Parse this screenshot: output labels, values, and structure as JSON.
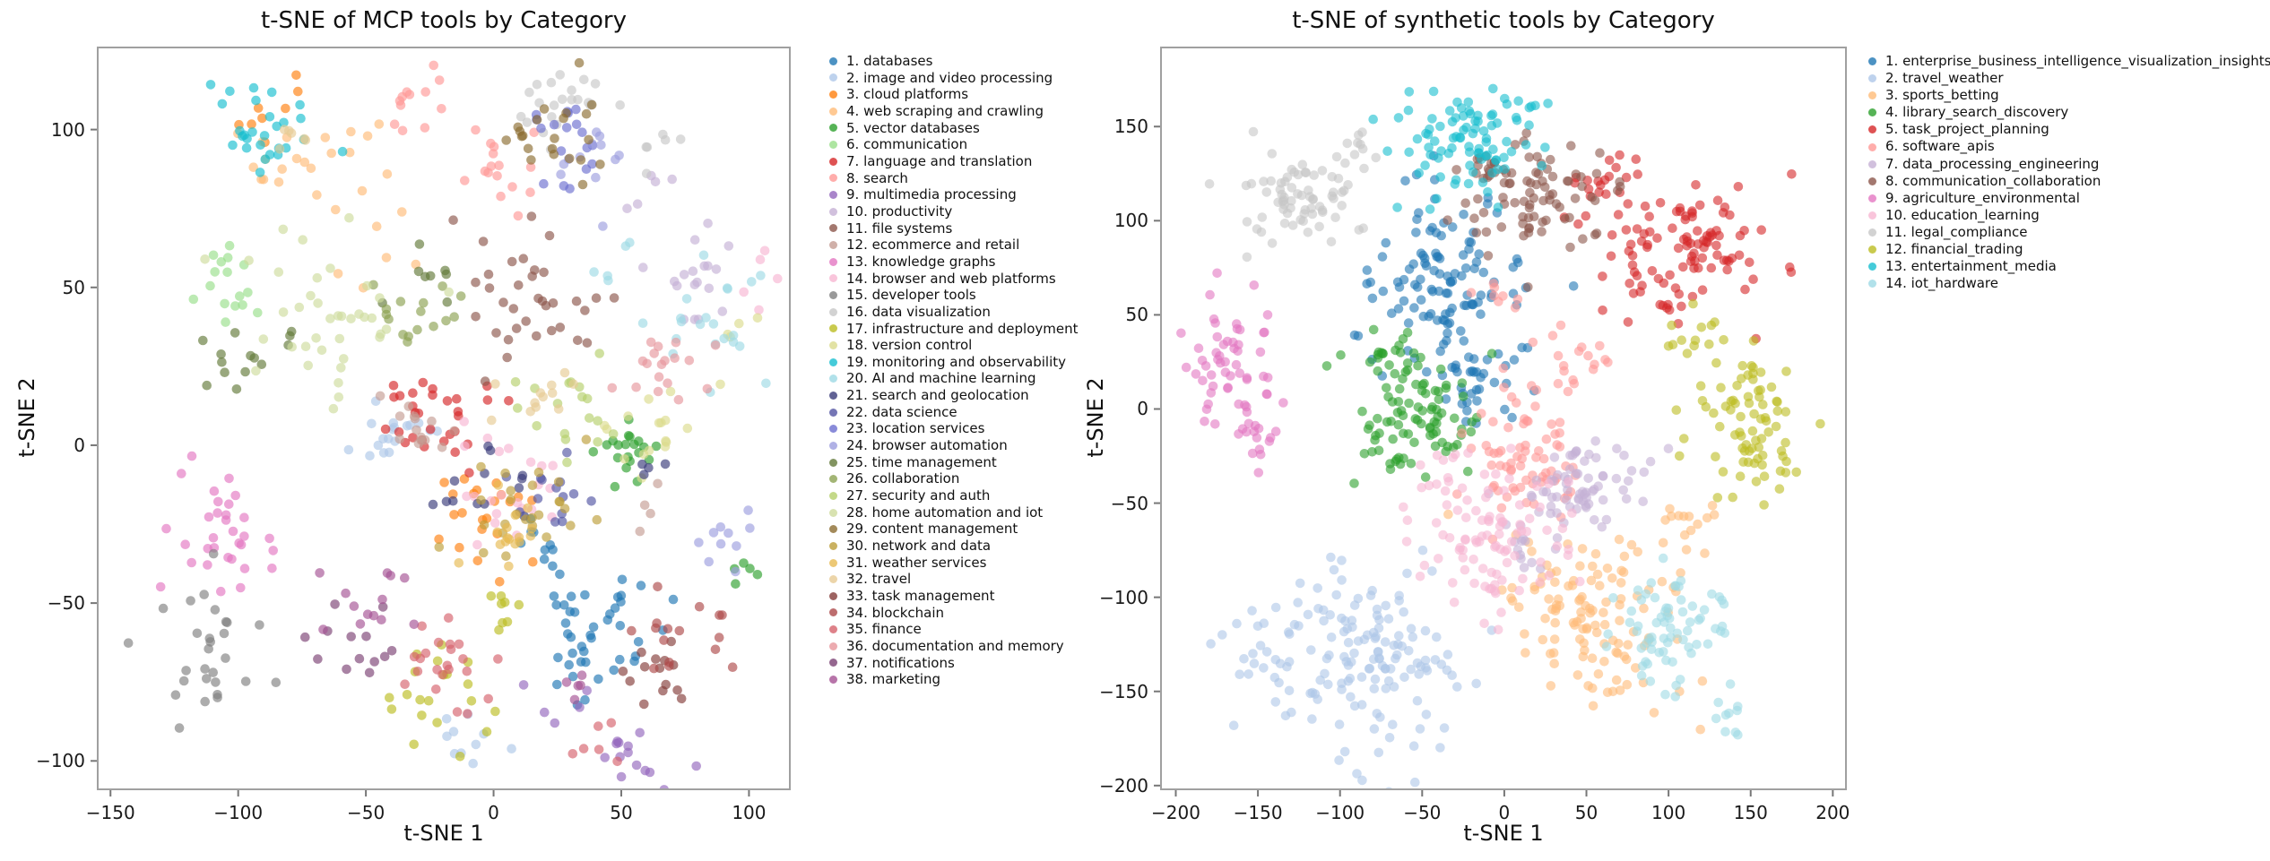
{
  "chart_data": [
    {
      "type": "scatter",
      "title": "t-SNE of MCP tools by Category",
      "xlabel": "t-SNE 1",
      "ylabel": "t-SNE 2",
      "x_ticks": [
        -150,
        -100,
        -50,
        0,
        50,
        100
      ],
      "y_ticks": [
        100,
        50,
        0,
        -50,
        -100
      ],
      "xlim": [
        -155,
        116
      ],
      "ylim": [
        -109,
        126
      ],
      "grid": false,
      "legend_position": "right-outside",
      "point_alpha": 0.65,
      "series": [
        {
          "name": "1. databases",
          "color": "#1f77b4",
          "clusters": [
            [
              40,
              -58,
              13,
              11,
              45
            ],
            [
              15,
              -30,
              6,
              5,
              6
            ]
          ]
        },
        {
          "name": "2. image and video processing",
          "color": "#aec7e8",
          "clusters": [
            [
              -42,
              4,
              8,
              6,
              18
            ],
            [
              -12,
              -97,
              9,
              6,
              10
            ]
          ]
        },
        {
          "name": "3. cloud platforms",
          "color": "#ff7f0e",
          "clusters": [
            [
              -3,
              -24,
              10,
              8,
              22
            ],
            [
              -88,
              106,
              7,
              5,
              8
            ]
          ]
        },
        {
          "name": "4. web scraping and crawling",
          "color": "#ffbb78",
          "clusters": [
            [
              -72,
              88,
              14,
              10,
              22
            ],
            [
              -45,
              60,
              8,
              6,
              6
            ]
          ]
        },
        {
          "name": "5. vector databases",
          "color": "#2ca02c",
          "clusters": [
            [
              55,
              1,
              8,
              7,
              20
            ],
            [
              97,
              -40,
              5,
              4,
              5
            ]
          ]
        },
        {
          "name": "6. communication",
          "color": "#98df8a",
          "clusters": [
            [
              -103,
              52,
              8,
              8,
              16
            ]
          ]
        },
        {
          "name": "7. language and translation",
          "color": "#d62728",
          "clusters": [
            [
              -25,
              10,
              11,
              8,
              30
            ]
          ]
        },
        {
          "name": "8. search",
          "color": "#ff9896",
          "clusters": [
            [
              2,
              85,
              7,
              9,
              16
            ],
            [
              -32,
              106,
              9,
              6,
              12
            ]
          ]
        },
        {
          "name": "9. multimedia processing",
          "color": "#9467bd",
          "clusters": [
            [
              55,
              -100,
              8,
              6,
              14
            ],
            [
              28,
              -80,
              6,
              5,
              5
            ]
          ]
        },
        {
          "name": "10. productivity",
          "color": "#c5b0d5",
          "clusters": [
            [
              82,
              55,
              10,
              13,
              18
            ],
            [
              60,
              80,
              6,
              5,
              5
            ]
          ]
        },
        {
          "name": "11. file systems",
          "color": "#8c564b",
          "clusters": [
            [
              8,
              48,
              13,
              11,
              35
            ]
          ]
        },
        {
          "name": "12. ecommerce and retail",
          "color": "#c49c94",
          "clusters": [
            [
              -32,
              6,
              8,
              6,
              14
            ],
            [
              55,
              -15,
              5,
              4,
              4
            ]
          ]
        },
        {
          "name": "13. knowledge graphs",
          "color": "#e377c2",
          "clusters": [
            [
              -108,
              -30,
              9,
              9,
              32
            ]
          ]
        },
        {
          "name": "14. browser and web platforms",
          "color": "#f7b6d2",
          "clusters": [
            [
              8,
              -18,
              9,
              11,
              22
            ],
            [
              108,
              50,
              4,
              6,
              5
            ]
          ]
        },
        {
          "name": "15. developer tools",
          "color": "#7f7f7f",
          "clusters": [
            [
              -112,
              -68,
              9,
              11,
              28
            ]
          ]
        },
        {
          "name": "16. data visualization",
          "color": "#c7c7c7",
          "clusters": [
            [
              28,
              108,
              13,
              7,
              22
            ],
            [
              60,
              95,
              8,
              5,
              6
            ]
          ]
        },
        {
          "name": "17. infrastructure and deployment",
          "color": "#bcbd22",
          "clusters": [
            [
              -20,
              -78,
              9,
              10,
              20
            ],
            [
              3,
              -52,
              7,
              6,
              8
            ]
          ]
        },
        {
          "name": "18. version control",
          "color": "#dbdb8d",
          "clusters": [
            [
              62,
              6,
              9,
              7,
              16
            ],
            [
              100,
              34,
              5,
              5,
              5
            ]
          ]
        },
        {
          "name": "19. monitoring and observability",
          "color": "#17becf",
          "clusters": [
            [
              -92,
              102,
              10,
              8,
              28
            ]
          ]
        },
        {
          "name": "20. AI and machine learning",
          "color": "#9edae5",
          "clusters": [
            [
              86,
              36,
              11,
              10,
              22
            ],
            [
              45,
              55,
              6,
              5,
              5
            ]
          ]
        },
        {
          "name": "21. search and geolocation",
          "color": "#393b79",
          "clusters": [
            [
              -5,
              -12,
              10,
              8,
              13
            ],
            [
              60,
              -5,
              5,
              4,
              4
            ]
          ]
        },
        {
          "name": "22. data science",
          "color": "#5254a3",
          "clusters": [
            [
              22,
              -14,
              9,
              7,
              14
            ]
          ]
        },
        {
          "name": "23. location services",
          "color": "#6b6ecf",
          "clusters": [
            [
              28,
              96,
              9,
              7,
              18
            ]
          ]
        },
        {
          "name": "24. browser automation",
          "color": "#9c9ede",
          "clusters": [
            [
              38,
              88,
              11,
              8,
              12
            ],
            [
              92,
              -30,
              5,
              5,
              10
            ]
          ]
        },
        {
          "name": "25. time management",
          "color": "#637939",
          "clusters": [
            [
              -95,
              30,
              8,
              7,
              14
            ],
            [
              -25,
              50,
              8,
              6,
              8
            ]
          ]
        },
        {
          "name": "26. collaboration",
          "color": "#8ca252",
          "clusters": [
            [
              -35,
              42,
              10,
              8,
              16
            ]
          ]
        },
        {
          "name": "27. security and auth",
          "color": "#b5cf6b",
          "clusters": [
            [
              32,
              14,
              11,
              8,
              18
            ]
          ]
        },
        {
          "name": "28. home automation and iot",
          "color": "#cedb9c",
          "clusters": [
            [
              -68,
              40,
              15,
              12,
              38
            ]
          ]
        },
        {
          "name": "29. content management",
          "color": "#8c6d31",
          "clusters": [
            [
              24,
              100,
              12,
              7,
              22
            ]
          ]
        },
        {
          "name": "30. network and data",
          "color": "#bd9e39",
          "clusters": [
            [
              15,
              -18,
              13,
              9,
              26
            ]
          ]
        },
        {
          "name": "31. weather services",
          "color": "#e7ba52",
          "clusters": [
            [
              5,
              -30,
              9,
              7,
              16
            ]
          ]
        },
        {
          "name": "32. travel",
          "color": "#e7cb94",
          "clusters": [
            [
              18,
              16,
              11,
              8,
              12
            ],
            [
              -78,
              98,
              7,
              5,
              6
            ]
          ]
        },
        {
          "name": "33. task management",
          "color": "#843c39",
          "clusters": [
            [
              68,
              -70,
              9,
              7,
              14
            ]
          ]
        },
        {
          "name": "34. blockchain",
          "color": "#ad494a",
          "clusters": [
            [
              76,
              -55,
              10,
              8,
              16
            ]
          ]
        },
        {
          "name": "35. finance",
          "color": "#d6616b",
          "clusters": [
            [
              -18,
              -68,
              9,
              10,
              22
            ],
            [
              35,
              -92,
              7,
              5,
              6
            ]
          ]
        },
        {
          "name": "36. documentation and memory",
          "color": "#e7969c",
          "clusters": [
            [
              64,
              24,
              10,
              7,
              18
            ]
          ]
        },
        {
          "name": "37. notifications",
          "color": "#7b4173",
          "clusters": [
            [
              -55,
              -60,
              8,
              8,
              13
            ]
          ]
        },
        {
          "name": "38. marketing",
          "color": "#a55194",
          "clusters": [
            [
              -45,
              -52,
              10,
              8,
              13
            ],
            [
              28,
              -75,
              6,
              5,
              5
            ]
          ]
        }
      ]
    },
    {
      "type": "scatter",
      "title": "t-SNE of synthetic tools by Category",
      "xlabel": "t-SNE 1",
      "ylabel": "t-SNE 2",
      "x_ticks": [
        -200,
        -150,
        -100,
        -50,
        0,
        50,
        100,
        150,
        200
      ],
      "y_ticks": [
        150,
        100,
        50,
        0,
        -50,
        -100,
        -150,
        -200
      ],
      "xlim": [
        -209,
        208
      ],
      "ylim": [
        -202,
        192
      ],
      "grid": false,
      "legend_position": "right-outside",
      "point_alpha": 0.6,
      "series": [
        {
          "name": "1. enterprise_business_intelligence_visualization_insights",
          "color": "#1f77b4",
          "clusters": [
            [
              -40,
              65,
              26,
              26,
              120
            ],
            [
              -15,
              15,
              15,
              12,
              30
            ]
          ]
        },
        {
          "name": "2. travel_weather",
          "color": "#aec7e8",
          "clusters": [
            [
              -85,
              -135,
              30,
              24,
              140
            ],
            [
              -150,
              -120,
              15,
              12,
              20
            ]
          ]
        },
        {
          "name": "3. sports_betting",
          "color": "#ffbb78",
          "clusters": [
            [
              55,
              -110,
              28,
              24,
              120
            ],
            [
              110,
              -60,
              12,
              10,
              15
            ]
          ]
        },
        {
          "name": "4. library_search_discovery",
          "color": "#2ca02c",
          "clusters": [
            [
              -55,
              -5,
              20,
              18,
              90
            ],
            [
              -70,
              30,
              10,
              8,
              15
            ]
          ]
        },
        {
          "name": "5. task_project_planning",
          "color": "#d62728",
          "clusters": [
            [
              110,
              85,
              26,
              20,
              110
            ],
            [
              60,
              120,
              12,
              10,
              15
            ]
          ]
        },
        {
          "name": "6. software_apis",
          "color": "#ff9896",
          "clusters": [
            [
              10,
              -30,
              18,
              16,
              70
            ],
            [
              40,
              25,
              12,
              10,
              20
            ],
            [
              -5,
              60,
              8,
              6,
              8
            ]
          ]
        },
        {
          "name": "7. data_processing_engineering",
          "color": "#c5b0d5",
          "clusters": [
            [
              45,
              -40,
              20,
              14,
              70
            ],
            [
              10,
              -75,
              10,
              8,
              12
            ]
          ]
        },
        {
          "name": "8. communication_collaboration",
          "color": "#8c564b",
          "clusters": [
            [
              20,
              110,
              24,
              14,
              80
            ],
            [
              -10,
              130,
              10,
              8,
              12
            ]
          ]
        },
        {
          "name": "9. agriculture_environmental",
          "color": "#e377c2",
          "clusters": [
            [
              -165,
              25,
              13,
              18,
              60
            ],
            [
              -140,
              -15,
              8,
              8,
              10
            ]
          ]
        },
        {
          "name": "10. education_learning",
          "color": "#f7b6d2",
          "clusters": [
            [
              -15,
              -70,
              24,
              18,
              90
            ],
            [
              -40,
              -40,
              10,
              8,
              12
            ]
          ]
        },
        {
          "name": "11. legal_compliance",
          "color": "#c7c7c7",
          "clusters": [
            [
              -125,
              110,
              18,
              14,
              70
            ],
            [
              -90,
              140,
              10,
              8,
              10
            ]
          ]
        },
        {
          "name": "12. financial_trading",
          "color": "#bcbd22",
          "clusters": [
            [
              150,
              -10,
              18,
              22,
              80
            ],
            [
              115,
              40,
              10,
              8,
              12
            ]
          ]
        },
        {
          "name": "13. entertainment_media",
          "color": "#17becf",
          "clusters": [
            [
              -25,
              140,
              24,
              14,
              80
            ],
            [
              10,
              160,
              12,
              8,
              12
            ]
          ]
        },
        {
          "name": "14. iot_hardware",
          "color": "#9edae5",
          "clusters": [
            [
              105,
              -115,
              20,
              16,
              70
            ],
            [
              140,
              -160,
              10,
              8,
              10
            ]
          ]
        }
      ]
    }
  ]
}
